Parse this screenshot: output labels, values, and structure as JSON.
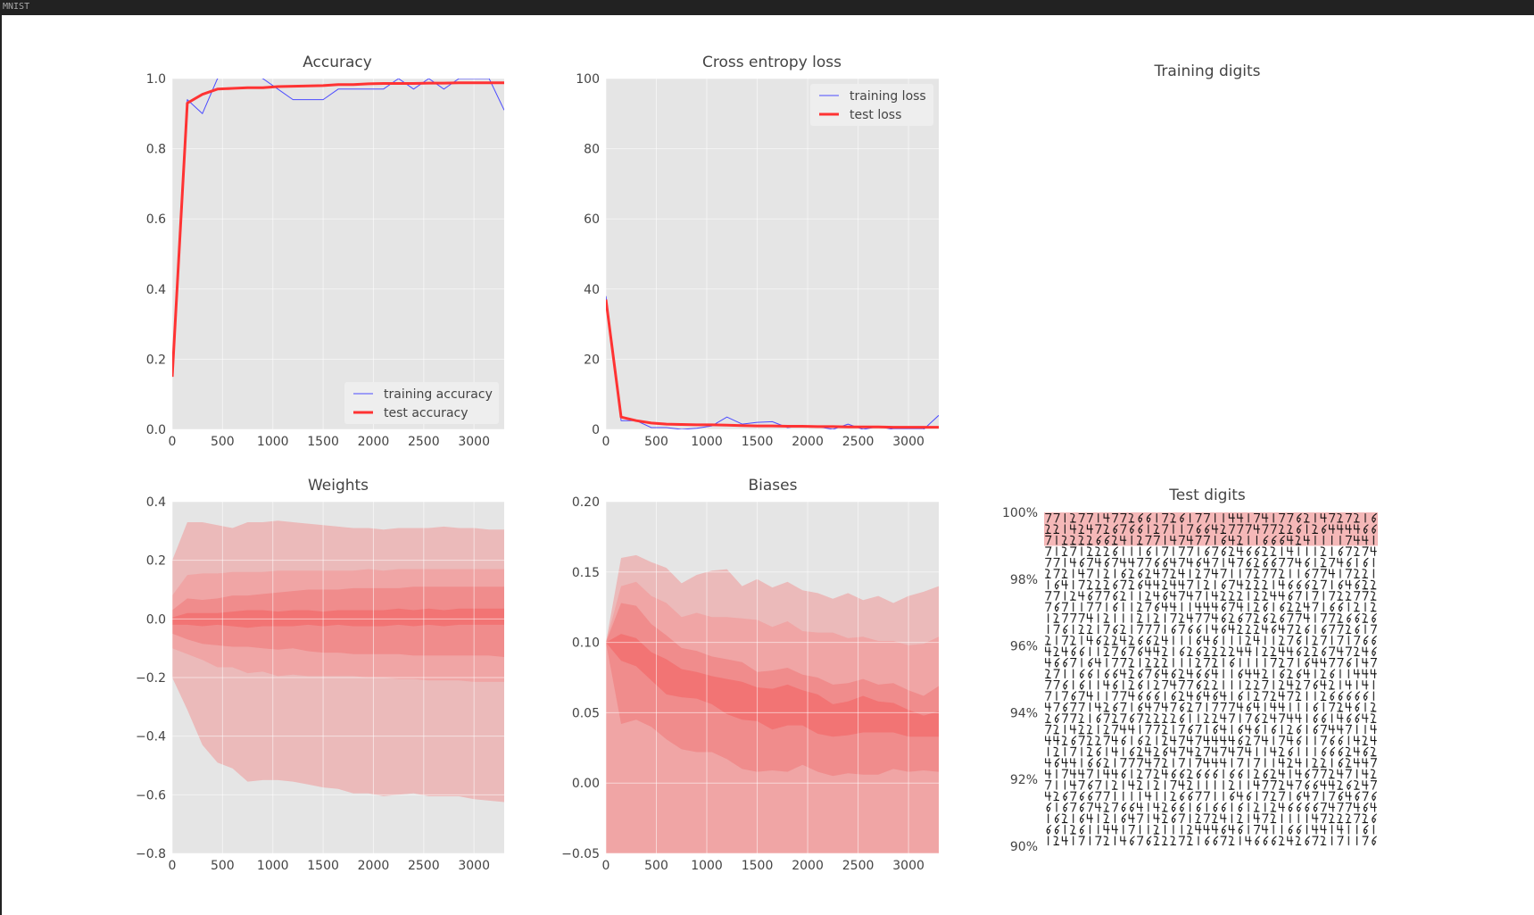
{
  "window": {
    "title": "MNIST"
  },
  "chart_data": [
    {
      "id": "accuracy",
      "type": "line",
      "title": "Accuracy",
      "xlim": [
        0,
        3300
      ],
      "ylim": [
        0,
        1.0
      ],
      "xticks": [
        "0",
        "500",
        "1000",
        "1500",
        "2000",
        "2500",
        "3000"
      ],
      "yticks": [
        "0.0",
        "0.2",
        "0.4",
        "0.6",
        "0.8",
        "1.0"
      ],
      "legend_position": "lower-right",
      "grid": true,
      "series": [
        {
          "name": "training accuracy",
          "color": "#4c4cff",
          "style": "thin",
          "x": [
            0,
            150,
            300,
            450,
            600,
            750,
            900,
            1050,
            1200,
            1350,
            1500,
            1650,
            1800,
            1950,
            2100,
            2250,
            2400,
            2550,
            2700,
            2850,
            3000,
            3150,
            3300
          ],
          "y": [
            0.16,
            0.94,
            0.9,
            1.0,
            1.02,
            1.02,
            1.0,
            0.97,
            0.94,
            0.94,
            0.94,
            0.97,
            0.97,
            0.97,
            0.97,
            1.0,
            0.97,
            1.0,
            0.97,
            1.0,
            1.0,
            1.0,
            0.91
          ]
        },
        {
          "name": "test accuracy",
          "color": "#ff3333",
          "style": "thick",
          "x": [
            0,
            150,
            300,
            450,
            600,
            750,
            900,
            1050,
            1200,
            1350,
            1500,
            1650,
            1800,
            1950,
            2100,
            2250,
            2400,
            2550,
            2700,
            2850,
            3000,
            3150,
            3300
          ],
          "y": [
            0.15,
            0.93,
            0.955,
            0.97,
            0.972,
            0.974,
            0.974,
            0.977,
            0.978,
            0.979,
            0.98,
            0.983,
            0.983,
            0.985,
            0.986,
            0.986,
            0.986,
            0.987,
            0.987,
            0.988,
            0.988,
            0.988,
            0.988
          ]
        }
      ]
    },
    {
      "id": "loss",
      "type": "line",
      "title": "Cross entropy loss",
      "xlim": [
        0,
        3300
      ],
      "ylim": [
        0,
        100
      ],
      "xticks": [
        "0",
        "500",
        "1000",
        "1500",
        "2000",
        "2500",
        "3000"
      ],
      "yticks": [
        "0",
        "20",
        "40",
        "60",
        "80",
        "100"
      ],
      "legend_position": "upper-right",
      "grid": true,
      "series": [
        {
          "name": "training loss",
          "color": "#4c4cff",
          "style": "thin",
          "x": [
            0,
            150,
            300,
            450,
            600,
            750,
            900,
            1050,
            1200,
            1350,
            1500,
            1650,
            1800,
            1950,
            2100,
            2250,
            2400,
            2550,
            2700,
            2850,
            3000,
            3150,
            3300
          ],
          "y": [
            38,
            2.5,
            2.5,
            0.5,
            0.5,
            0,
            0.3,
            1.0,
            3.5,
            1.5,
            2.0,
            2.2,
            0.5,
            1.0,
            0.8,
            0,
            1.5,
            0,
            0.8,
            0,
            0,
            0,
            4.0
          ]
        },
        {
          "name": "test loss",
          "color": "#ff3333",
          "style": "thick",
          "x": [
            0,
            150,
            300,
            450,
            600,
            750,
            900,
            1050,
            1200,
            1350,
            1500,
            1650,
            1800,
            1950,
            2100,
            2250,
            2400,
            2550,
            2700,
            2850,
            3000,
            3150,
            3300
          ],
          "y": [
            37,
            3.5,
            2.5,
            1.8,
            1.5,
            1.4,
            1.3,
            1.3,
            1.2,
            1.1,
            1.0,
            1.0,
            0.9,
            0.9,
            0.8,
            0.8,
            0.7,
            0.7,
            0.7,
            0.6,
            0.6,
            0.6,
            0.6
          ]
        }
      ]
    },
    {
      "id": "weights",
      "type": "area",
      "title": "Weights",
      "xlim": [
        0,
        3300
      ],
      "ylim": [
        -0.8,
        0.4
      ],
      "xticks": [
        "0",
        "500",
        "1000",
        "1500",
        "2000",
        "2500",
        "3000"
      ],
      "yticks": [
        "0.4",
        "0.2",
        "0.0",
        "−0.2",
        "−0.4",
        "−0.6",
        "−0.8"
      ],
      "grid": true,
      "x": [
        0,
        150,
        300,
        450,
        600,
        750,
        900,
        1050,
        1200,
        1350,
        1500,
        1650,
        1800,
        1950,
        2100,
        2250,
        2400,
        2550,
        2700,
        2850,
        3000,
        3150,
        3300
      ],
      "bands": [
        {
          "color": "#ebbaba",
          "upper": [
            0.2,
            0.33,
            0.33,
            0.32,
            0.31,
            0.33,
            0.33,
            0.335,
            0.33,
            0.325,
            0.32,
            0.315,
            0.31,
            0.31,
            0.305,
            0.31,
            0.31,
            0.31,
            0.315,
            0.31,
            0.31,
            0.305,
            0.305
          ],
          "lower": [
            -0.2,
            -0.31,
            -0.43,
            -0.49,
            -0.51,
            -0.555,
            -0.55,
            -0.55,
            -0.555,
            -0.565,
            -0.575,
            -0.58,
            -0.595,
            -0.595,
            -0.605,
            -0.6,
            -0.595,
            -0.605,
            -0.605,
            -0.605,
            -0.615,
            -0.62,
            -0.625
          ]
        },
        {
          "color": "#f0a5a5",
          "upper": [
            0.08,
            0.15,
            0.155,
            0.155,
            0.16,
            0.16,
            0.16,
            0.165,
            0.165,
            0.165,
            0.165,
            0.165,
            0.165,
            0.17,
            0.165,
            0.17,
            0.17,
            0.17,
            0.17,
            0.17,
            0.17,
            0.17,
            0.17
          ],
          "lower": [
            -0.1,
            -0.12,
            -0.14,
            -0.165,
            -0.165,
            -0.185,
            -0.18,
            -0.195,
            -0.19,
            -0.195,
            -0.195,
            -0.195,
            -0.195,
            -0.2,
            -0.2,
            -0.205,
            -0.205,
            -0.21,
            -0.21,
            -0.21,
            -0.215,
            -0.215,
            -0.215
          ]
        },
        {
          "color": "#f08c8c",
          "upper": [
            0.03,
            0.07,
            0.065,
            0.07,
            0.08,
            0.08,
            0.085,
            0.09,
            0.095,
            0.1,
            0.1,
            0.1,
            0.105,
            0.105,
            0.105,
            0.105,
            0.11,
            0.11,
            0.11,
            0.11,
            0.11,
            0.11,
            0.11
          ],
          "lower": [
            -0.05,
            -0.07,
            -0.085,
            -0.09,
            -0.095,
            -0.095,
            -0.1,
            -0.105,
            -0.1,
            -0.11,
            -0.115,
            -0.115,
            -0.12,
            -0.12,
            -0.12,
            -0.12,
            -0.125,
            -0.125,
            -0.125,
            -0.125,
            -0.125,
            -0.125,
            -0.13
          ]
        },
        {
          "color": "#f27474",
          "upper": [
            0.005,
            0.02,
            0.02,
            0.02,
            0.025,
            0.03,
            0.03,
            0.025,
            0.03,
            0.03,
            0.025,
            0.03,
            0.03,
            0.03,
            0.03,
            0.035,
            0.03,
            0.035,
            0.03,
            0.035,
            0.035,
            0.035,
            0.035
          ],
          "lower": [
            -0.02,
            -0.02,
            -0.025,
            -0.02,
            -0.025,
            -0.03,
            -0.025,
            -0.025,
            -0.025,
            -0.02,
            -0.025,
            -0.02,
            -0.025,
            -0.025,
            -0.025,
            -0.02,
            -0.025,
            -0.02,
            -0.025,
            -0.02,
            -0.02,
            -0.02,
            -0.02
          ]
        }
      ]
    },
    {
      "id": "biases",
      "type": "area",
      "title": "Biases",
      "xlim": [
        0,
        3300
      ],
      "ylim": [
        -0.05,
        0.2
      ],
      "xticks": [
        "0",
        "500",
        "1000",
        "1500",
        "2000",
        "2500",
        "3000"
      ],
      "yticks": [
        "0.20",
        "0.15",
        "0.10",
        "0.05",
        "0.00",
        "−0.05"
      ],
      "grid": true,
      "x": [
        0,
        150,
        300,
        450,
        600,
        750,
        900,
        1050,
        1200,
        1350,
        1500,
        1650,
        1800,
        1950,
        2100,
        2250,
        2400,
        2550,
        2700,
        2850,
        3000,
        3150,
        3300
      ],
      "bands": [
        {
          "color": "#ebbaba",
          "upper": [
            0.1,
            0.16,
            0.162,
            0.157,
            0.153,
            0.142,
            0.148,
            0.151,
            0.152,
            0.14,
            0.145,
            0.139,
            0.143,
            0.137,
            0.135,
            0.131,
            0.135,
            0.13,
            0.133,
            0.128,
            0.133,
            0.136,
            0.14
          ],
          "lower": [
            0.1,
            0.003,
            0.005,
            -0.006,
            -0.001,
            -0.003,
            -0.009,
            -0.01,
            -0.025,
            -0.031,
            -0.034,
            -0.02,
            -0.012,
            -0.017,
            -0.026,
            -0.02,
            -0.024,
            -0.013,
            -0.011,
            -0.009,
            -0.007,
            -0.009,
            -0.008
          ]
        },
        {
          "color": "#f0a5a5",
          "upper": [
            0.1,
            0.14,
            0.143,
            0.133,
            0.128,
            0.118,
            0.121,
            0.118,
            0.118,
            0.117,
            0.116,
            0.111,
            0.115,
            0.108,
            0.107,
            0.107,
            0.103,
            0.104,
            0.101,
            0.101,
            0.098,
            0.099,
            0.104
          ]
        },
        {
          "color": "#f08c8c",
          "upper": [
            0.1,
            0.128,
            0.126,
            0.113,
            0.105,
            0.096,
            0.094,
            0.09,
            0.088,
            0.086,
            0.079,
            0.08,
            0.082,
            0.077,
            0.075,
            0.07,
            0.071,
            0.074,
            0.07,
            0.071,
            0.066,
            0.062,
            0.069
          ],
          "lower": [
            0.1,
            0.042,
            0.045,
            0.04,
            0.031,
            0.024,
            0.022,
            0.022,
            0.017,
            0.01,
            0.008,
            0.009,
            0.008,
            0.013,
            0.008,
            0.005,
            0.007,
            0.006,
            0.006,
            0.01,
            0.008,
            0.009,
            0.008
          ]
        },
        {
          "color": "#f27474",
          "upper": [
            0.1,
            0.106,
            0.103,
            0.093,
            0.088,
            0.081,
            0.079,
            0.076,
            0.074,
            0.072,
            0.068,
            0.067,
            0.07,
            0.066,
            0.063,
            0.056,
            0.058,
            0.062,
            0.058,
            0.057,
            0.052,
            0.048,
            0.051
          ],
          "lower": [
            0.1,
            0.087,
            0.083,
            0.073,
            0.063,
            0.061,
            0.06,
            0.056,
            0.049,
            0.045,
            0.044,
            0.038,
            0.041,
            0.041,
            0.035,
            0.033,
            0.034,
            0.036,
            0.036,
            0.036,
            0.033,
            0.033,
            0.033
          ]
        }
      ]
    }
  ],
  "training_digits": {
    "title": "Training digits"
  },
  "test_digits": {
    "title": "Test digits",
    "yticks": [
      "100%",
      "98%",
      "96%",
      "94%",
      "92%",
      "90%"
    ],
    "highlight_color": "#f5b8b8",
    "rows": 30,
    "cols": 40,
    "error_rows": 3
  }
}
